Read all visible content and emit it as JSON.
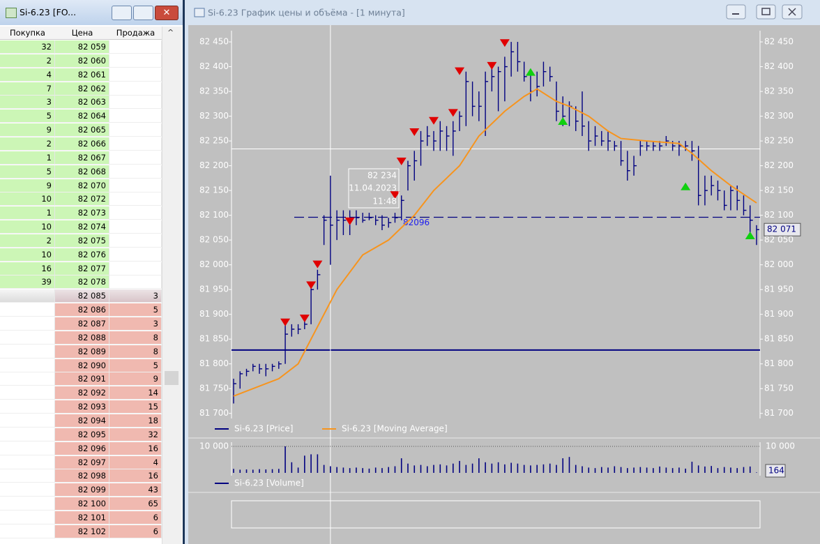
{
  "order_book": {
    "title": "Si-6.23 [FO...",
    "headers": [
      "Покупка",
      "Цена",
      "Продажа"
    ],
    "bids": [
      {
        "buy": 32,
        "price": "82 059"
      },
      {
        "buy": 2,
        "price": "82 060"
      },
      {
        "buy": 4,
        "price": "82 061"
      },
      {
        "buy": 7,
        "price": "82 062"
      },
      {
        "buy": 3,
        "price": "82 063"
      },
      {
        "buy": 5,
        "price": "82 064"
      },
      {
        "buy": 9,
        "price": "82 065"
      },
      {
        "buy": 2,
        "price": "82 066"
      },
      {
        "buy": 1,
        "price": "82 067"
      },
      {
        "buy": 5,
        "price": "82 068"
      },
      {
        "buy": 9,
        "price": "82 070"
      },
      {
        "buy": 10,
        "price": "82 072"
      },
      {
        "buy": 1,
        "price": "82 073"
      },
      {
        "buy": 10,
        "price": "82 074"
      },
      {
        "buy": 2,
        "price": "82 075"
      },
      {
        "buy": 10,
        "price": "82 076"
      },
      {
        "buy": 16,
        "price": "82 077"
      },
      {
        "buy": 39,
        "price": "82 078"
      }
    ],
    "asks": [
      {
        "price": "82 085",
        "sell": 3
      },
      {
        "price": "82 086",
        "sell": 5
      },
      {
        "price": "82 087",
        "sell": 3
      },
      {
        "price": "82 088",
        "sell": 8
      },
      {
        "price": "82 089",
        "sell": 8
      },
      {
        "price": "82 090",
        "sell": 5
      },
      {
        "price": "82 091",
        "sell": 9
      },
      {
        "price": "82 092",
        "sell": 14
      },
      {
        "price": "82 093",
        "sell": 15
      },
      {
        "price": "82 094",
        "sell": 18
      },
      {
        "price": "82 095",
        "sell": 32
      },
      {
        "price": "82 096",
        "sell": 16
      },
      {
        "price": "82 097",
        "sell": 4
      },
      {
        "price": "82 098",
        "sell": 16
      },
      {
        "price": "82 099",
        "sell": 43
      },
      {
        "price": "82 100",
        "sell": 65
      },
      {
        "price": "82 101",
        "sell": 6
      },
      {
        "price": "82 102",
        "sell": 6
      }
    ]
  },
  "chart_window": {
    "title": "Si-6.23 График цены и объёма - [1 минута]"
  },
  "chart_data": {
    "type": "ohlc",
    "ylim": [
      81694,
      82467
    ],
    "yticks": [
      {
        "value": 81700,
        "label": "81 700"
      },
      {
        "value": 81750,
        "label": "81 750"
      },
      {
        "value": 81800,
        "label": "81 800"
      },
      {
        "value": 81850,
        "label": "81 850"
      },
      {
        "value": 81900,
        "label": "81 900"
      },
      {
        "value": 81950,
        "label": "81 950"
      },
      {
        "value": 82000,
        "label": "82 000"
      },
      {
        "value": 82050,
        "label": "82 050"
      },
      {
        "value": 82100,
        "label": "82 100"
      },
      {
        "value": 82150,
        "label": "82 150"
      },
      {
        "value": 82200,
        "label": "82 200"
      },
      {
        "value": 82250,
        "label": "82 250"
      },
      {
        "value": 82300,
        "label": "82 300"
      },
      {
        "value": 82350,
        "label": "82 350"
      },
      {
        "value": 82400,
        "label": "82 400"
      },
      {
        "value": 82450,
        "label": "82 450"
      }
    ],
    "series": [
      {
        "name": "Si-6.23 [Price]",
        "color": "#000080",
        "high": [
          81770,
          81785,
          81790,
          81800,
          81800,
          81800,
          81800,
          81805,
          81880,
          81880,
          81880,
          81890,
          81960,
          81990,
          82100,
          82180,
          82110,
          82110,
          82110,
          82110,
          82105,
          82105,
          82100,
          82100,
          82095,
          82105,
          82140,
          82210,
          82230,
          82270,
          82280,
          82270,
          82290,
          82280,
          82290,
          82310,
          82390,
          82370,
          82350,
          82390,
          82400,
          82400,
          82420,
          82450,
          82450,
          82410,
          82390,
          82390,
          82410,
          82400,
          82370,
          82340,
          82330,
          82320,
          82350,
          82290,
          82280,
          82270,
          82270,
          82250,
          82250,
          82230,
          82220,
          82250,
          82250,
          82250,
          82250,
          82260,
          82250,
          82250,
          82250,
          82250,
          82240,
          82180,
          82180,
          82170,
          82150,
          82160,
          82160,
          82140,
          82120,
          82080
        ],
        "low": [
          81720,
          81750,
          81775,
          81785,
          81780,
          81775,
          81785,
          81790,
          81800,
          81855,
          81860,
          81870,
          81880,
          81950,
          82040,
          82000,
          82050,
          82060,
          82060,
          82080,
          82085,
          82090,
          82080,
          82070,
          82075,
          82085,
          82090,
          82150,
          82170,
          82200,
          82240,
          82230,
          82230,
          82230,
          82220,
          82270,
          82280,
          82300,
          82290,
          82260,
          82350,
          82310,
          82330,
          82380,
          82390,
          82370,
          82330,
          82340,
          82360,
          82370,
          82290,
          82280,
          82280,
          82270,
          82260,
          82230,
          82240,
          82240,
          82230,
          82230,
          82200,
          82170,
          82180,
          82220,
          82230,
          82230,
          82230,
          82240,
          82230,
          82220,
          82230,
          82210,
          82120,
          82120,
          82140,
          82130,
          82110,
          82110,
          82110,
          82100,
          82060,
          82040
        ],
        "close": [
          81760,
          81780,
          81785,
          81795,
          81790,
          81790,
          81795,
          81800,
          81860,
          81870,
          81870,
          81880,
          81950,
          81980,
          82090,
          82080,
          82090,
          82090,
          82095,
          82095,
          82090,
          82095,
          82090,
          82080,
          82085,
          82095,
          82130,
          82200,
          82210,
          82250,
          82260,
          82250,
          82270,
          82260,
          82270,
          82300,
          82370,
          82320,
          82320,
          82370,
          82380,
          82390,
          82400,
          82430,
          82410,
          82380,
          82350,
          82360,
          82390,
          82380,
          82310,
          82300,
          82320,
          82290,
          82280,
          82250,
          82260,
          82250,
          82250,
          82240,
          82210,
          82190,
          82200,
          82240,
          82240,
          82240,
          82240,
          82250,
          82240,
          82240,
          82240,
          82230,
          82140,
          82150,
          82160,
          82150,
          82120,
          82150,
          82130,
          82110,
          82090,
          82071
        ]
      },
      {
        "name": "Si-6.23 [Moving Average]",
        "color": "#f7941d",
        "x": [
          0,
          7,
          10,
          12,
          16,
          20,
          24,
          28,
          31,
          35,
          38,
          42,
          45,
          47,
          50,
          52,
          55,
          58,
          60,
          64,
          69,
          71,
          74,
          77,
          81
        ],
        "values": [
          81735,
          81770,
          81800,
          81850,
          81950,
          82020,
          82050,
          82100,
          82150,
          82200,
          82260,
          82310,
          82340,
          82355,
          82330,
          82320,
          82300,
          82270,
          82255,
          82250,
          82245,
          82225,
          82190,
          82160,
          82125
        ]
      },
      {
        "name": "Si-6.23 [Volume]",
        "color": "#000080",
        "values": [
          1500,
          1200,
          1300,
          1200,
          1400,
          1300,
          1400,
          1500,
          10000,
          4000,
          2000,
          6500,
          7000,
          7000,
          3000,
          2500,
          2200,
          2000,
          1800,
          2000,
          1800,
          1600,
          2000,
          1800,
          2200,
          2500,
          5500,
          3500,
          2800,
          3000,
          2500,
          3000,
          3200,
          2800,
          3500,
          4500,
          3000,
          3500,
          5500,
          4000,
          3500,
          4000,
          3200,
          3800,
          3500,
          3000,
          2800,
          3000,
          3200,
          3500,
          3000,
          5500,
          6000,
          3000,
          2500,
          2000,
          1800,
          2200,
          2000,
          2500,
          2200,
          1800,
          2000,
          2200,
          2000,
          1800,
          2400,
          2000,
          1800,
          2000,
          1600,
          4200,
          2800,
          2400,
          2600,
          1800,
          2200,
          2000,
          1800,
          2200,
          2400,
          164
        ]
      }
    ],
    "vlim": [
      0,
      10000
    ],
    "vticks": [
      {
        "value": 10000,
        "label": "10 000"
      }
    ],
    "signals": {
      "sell": {
        "color": "#e00000",
        "x": [
          8,
          11,
          12,
          13,
          18,
          25,
          26,
          28,
          31,
          34,
          35,
          40,
          42
        ],
        "values": [
          81883,
          81891,
          81958,
          82000,
          82087,
          82140,
          82208,
          82267,
          82290,
          82306,
          82390,
          82401,
          82447
        ]
      },
      "buy": {
        "color": "#10d010",
        "x": [
          46,
          51,
          70,
          80
        ],
        "values": [
          82390,
          82291,
          82159,
          82060
        ]
      }
    },
    "level_line": {
      "value": 81828,
      "color": "#000080"
    },
    "order_level": 82096,
    "last_price": {
      "value": 82071,
      "label": "82 071"
    },
    "crosshair": {
      "x": 15,
      "value": 82234,
      "label": "82 234",
      "date": "11.04.2023",
      "time": "11:48"
    }
  }
}
